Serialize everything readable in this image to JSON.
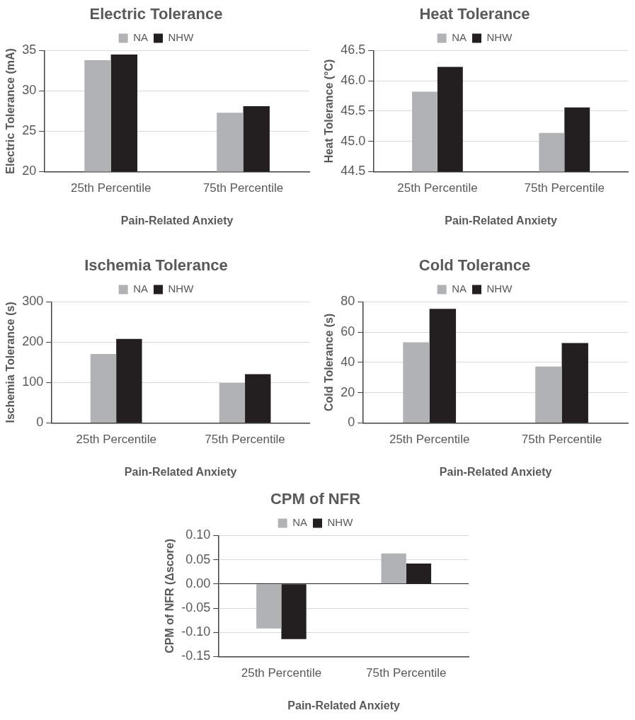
{
  "chart_data": [
    {
      "type": "bar",
      "title": "Electric Tolerance",
      "xlabel": "Pain-Related Anxiety",
      "ylabel": "Electric Tolerance (mA)",
      "categories": [
        "25th Percentile",
        "75th Percentile"
      ],
      "series": [
        {
          "name": "NA",
          "color": "#b0b2b4",
          "values": [
            33.8,
            27.3
          ]
        },
        {
          "name": "NHW",
          "color": "#231f20",
          "values": [
            34.5,
            28.1
          ]
        }
      ],
      "ylim": [
        20,
        35
      ],
      "yticks": [
        20,
        25,
        30,
        35
      ],
      "grid": "y",
      "legend": "top"
    },
    {
      "type": "bar",
      "title": "Heat Tolerance",
      "xlabel": "Pain-Related Anxiety",
      "ylabel": "Heat Tolerance (°C)",
      "categories": [
        "25th Percentile",
        "75th Percentile"
      ],
      "series": [
        {
          "name": "NA",
          "color": "#b0b2b4",
          "values": [
            45.82,
            45.14
          ]
        },
        {
          "name": "NHW",
          "color": "#231f20",
          "values": [
            46.23,
            45.56
          ]
        }
      ],
      "ylim": [
        44.5,
        46.5
      ],
      "yticks": [
        44.5,
        {
          "value": 45,
          "label": "45.0"
        },
        45.5,
        {
          "value": 46,
          "label": "46.0"
        },
        46.5
      ],
      "grid": "y",
      "legend": "top"
    },
    {
      "type": "bar",
      "title": "Ischemia Tolerance",
      "xlabel": "Pain-Related Anxiety",
      "ylabel": "Ischemia Tolerance (s)",
      "categories": [
        "25th Percentile",
        "75th Percentile"
      ],
      "series": [
        {
          "name": "NA",
          "color": "#b0b2b4",
          "values": [
            171,
            99
          ]
        },
        {
          "name": "NHW",
          "color": "#231f20",
          "values": [
            208,
            121
          ]
        }
      ],
      "ylim": [
        0,
        300
      ],
      "yticks": [
        0,
        100,
        200,
        300
      ],
      "grid": "y",
      "legend": "top"
    },
    {
      "type": "bar",
      "title": "Cold Tolerance",
      "xlabel": "Pain-Related Anxiety",
      "ylabel": "Cold Tolerance (s)",
      "categories": [
        "25th Percentile",
        "75th Percentile"
      ],
      "series": [
        {
          "name": "NA",
          "color": "#b0b2b4",
          "values": [
            53.3,
            37.3
          ]
        },
        {
          "name": "NHW",
          "color": "#231f20",
          "values": [
            75.4,
            52.8
          ]
        }
      ],
      "ylim": [
        0,
        80
      ],
      "yticks": [
        0,
        20,
        40,
        60,
        80
      ],
      "grid": "y",
      "legend": "top"
    },
    {
      "type": "bar",
      "title": "CPM of NFR",
      "xlabel": "Pain-Related Anxiety",
      "ylabel": "CPM of NFR (Δscore)",
      "categories": [
        "25th Percentile",
        "75th Percentile"
      ],
      "series": [
        {
          "name": "NA",
          "color": "#b0b2b4",
          "values": [
            -0.092,
            0.063
          ]
        },
        {
          "name": "NHW",
          "color": "#231f20",
          "values": [
            -0.114,
            0.042
          ]
        }
      ],
      "ylim": [
        -0.15,
        0.1
      ],
      "yticks": [
        {
          "value": -0.15,
          "label": "-0.15"
        },
        {
          "value": -0.1,
          "label": "-0.10"
        },
        {
          "value": -0.05,
          "label": "-0.05"
        },
        {
          "value": 0,
          "label": "0.00"
        },
        {
          "value": 0.05,
          "label": "0.05"
        },
        {
          "value": 0.1,
          "label": "0.10"
        }
      ],
      "grid": "y",
      "legend": "top"
    }
  ]
}
